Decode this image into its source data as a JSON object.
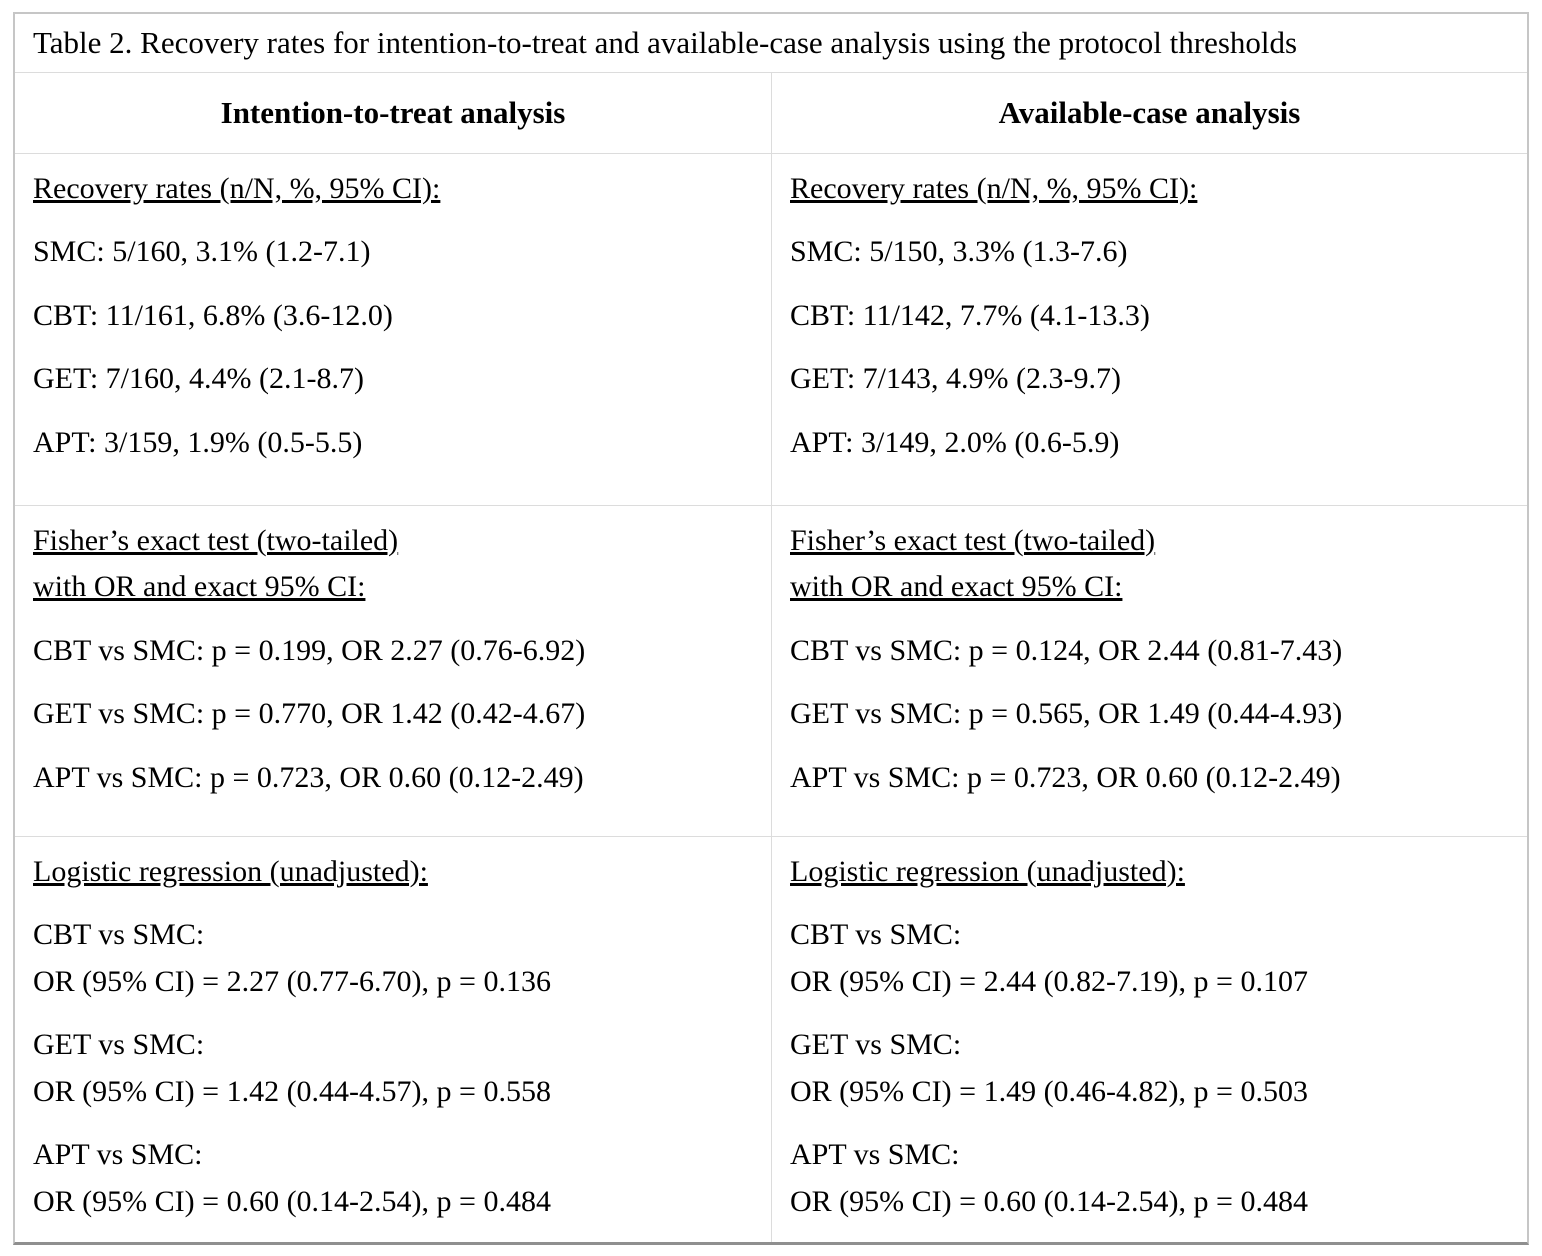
{
  "title": "Table 2. Recovery rates for intention-to-treat and available-case analysis using the protocol thresholds",
  "columns": [
    {
      "header": "Intention-to-treat analysis",
      "recovery": {
        "heading": "Recovery rates (n/N, %, 95% CI):",
        "rows": [
          "SMC: 5/160, 3.1% (1.2-7.1)",
          "CBT: 11/161, 6.8% (3.6-12.0)",
          "GET: 7/160, 4.4% (2.1-8.7)",
          "APT: 3/159, 1.9% (0.5-5.5)"
        ]
      },
      "fisher": {
        "heading_line1": "Fisher’s exact test (two-tailed)",
        "heading_line2": "with OR and exact 95% CI:",
        "rows": [
          "CBT vs SMC: p = 0.199, OR 2.27 (0.76-6.92)",
          "GET vs SMC: p = 0.770, OR 1.42 (0.42-4.67)",
          "APT vs SMC: p = 0.723, OR 0.60 (0.12-2.49)"
        ]
      },
      "logistic": {
        "heading": "Logistic regression (unadjusted):",
        "rows": [
          {
            "label": "CBT vs SMC:",
            "value": "OR (95% CI) = 2.27 (0.77-6.70), p = 0.136"
          },
          {
            "label": "GET vs SMC:",
            "value": "OR (95% CI) = 1.42 (0.44-4.57), p = 0.558"
          },
          {
            "label": "APT vs SMC:",
            "value": "OR (95% CI) = 0.60 (0.14-2.54), p = 0.484"
          }
        ]
      }
    },
    {
      "header": "Available-case analysis",
      "recovery": {
        "heading": "Recovery rates (n/N, %, 95% CI):",
        "rows": [
          "SMC: 5/150, 3.3% (1.3-7.6)",
          "CBT: 11/142, 7.7% (4.1-13.3)",
          "GET: 7/143, 4.9% (2.3-9.7)",
          "APT: 3/149, 2.0% (0.6-5.9)"
        ]
      },
      "fisher": {
        "heading_line1": "Fisher’s exact test (two-tailed)",
        "heading_line2": "with OR and exact 95% CI:",
        "rows": [
          "CBT vs SMC: p = 0.124, OR 2.44 (0.81-7.43)",
          "GET vs SMC: p = 0.565, OR 1.49 (0.44-4.93)",
          "APT vs SMC: p = 0.723, OR 0.60 (0.12-2.49)"
        ]
      },
      "logistic": {
        "heading": "Logistic regression (unadjusted):",
        "rows": [
          {
            "label": "CBT vs SMC:",
            "value": "OR (95% CI) = 2.44 (0.82-7.19), p = 0.107"
          },
          {
            "label": "GET vs SMC:",
            "value": "OR (95% CI) = 1.49 (0.46-4.82), p = 0.503"
          },
          {
            "label": "APT vs SMC:",
            "value": "OR (95% CI) = 0.60 (0.14-2.54), p = 0.484"
          }
        ]
      }
    }
  ],
  "colors": {
    "background": "#ffffff",
    "text": "#000000",
    "grid_line": "#dcdcdc",
    "outer_border": "#c6c6c6",
    "bottom_border": "#8f8f8f"
  }
}
